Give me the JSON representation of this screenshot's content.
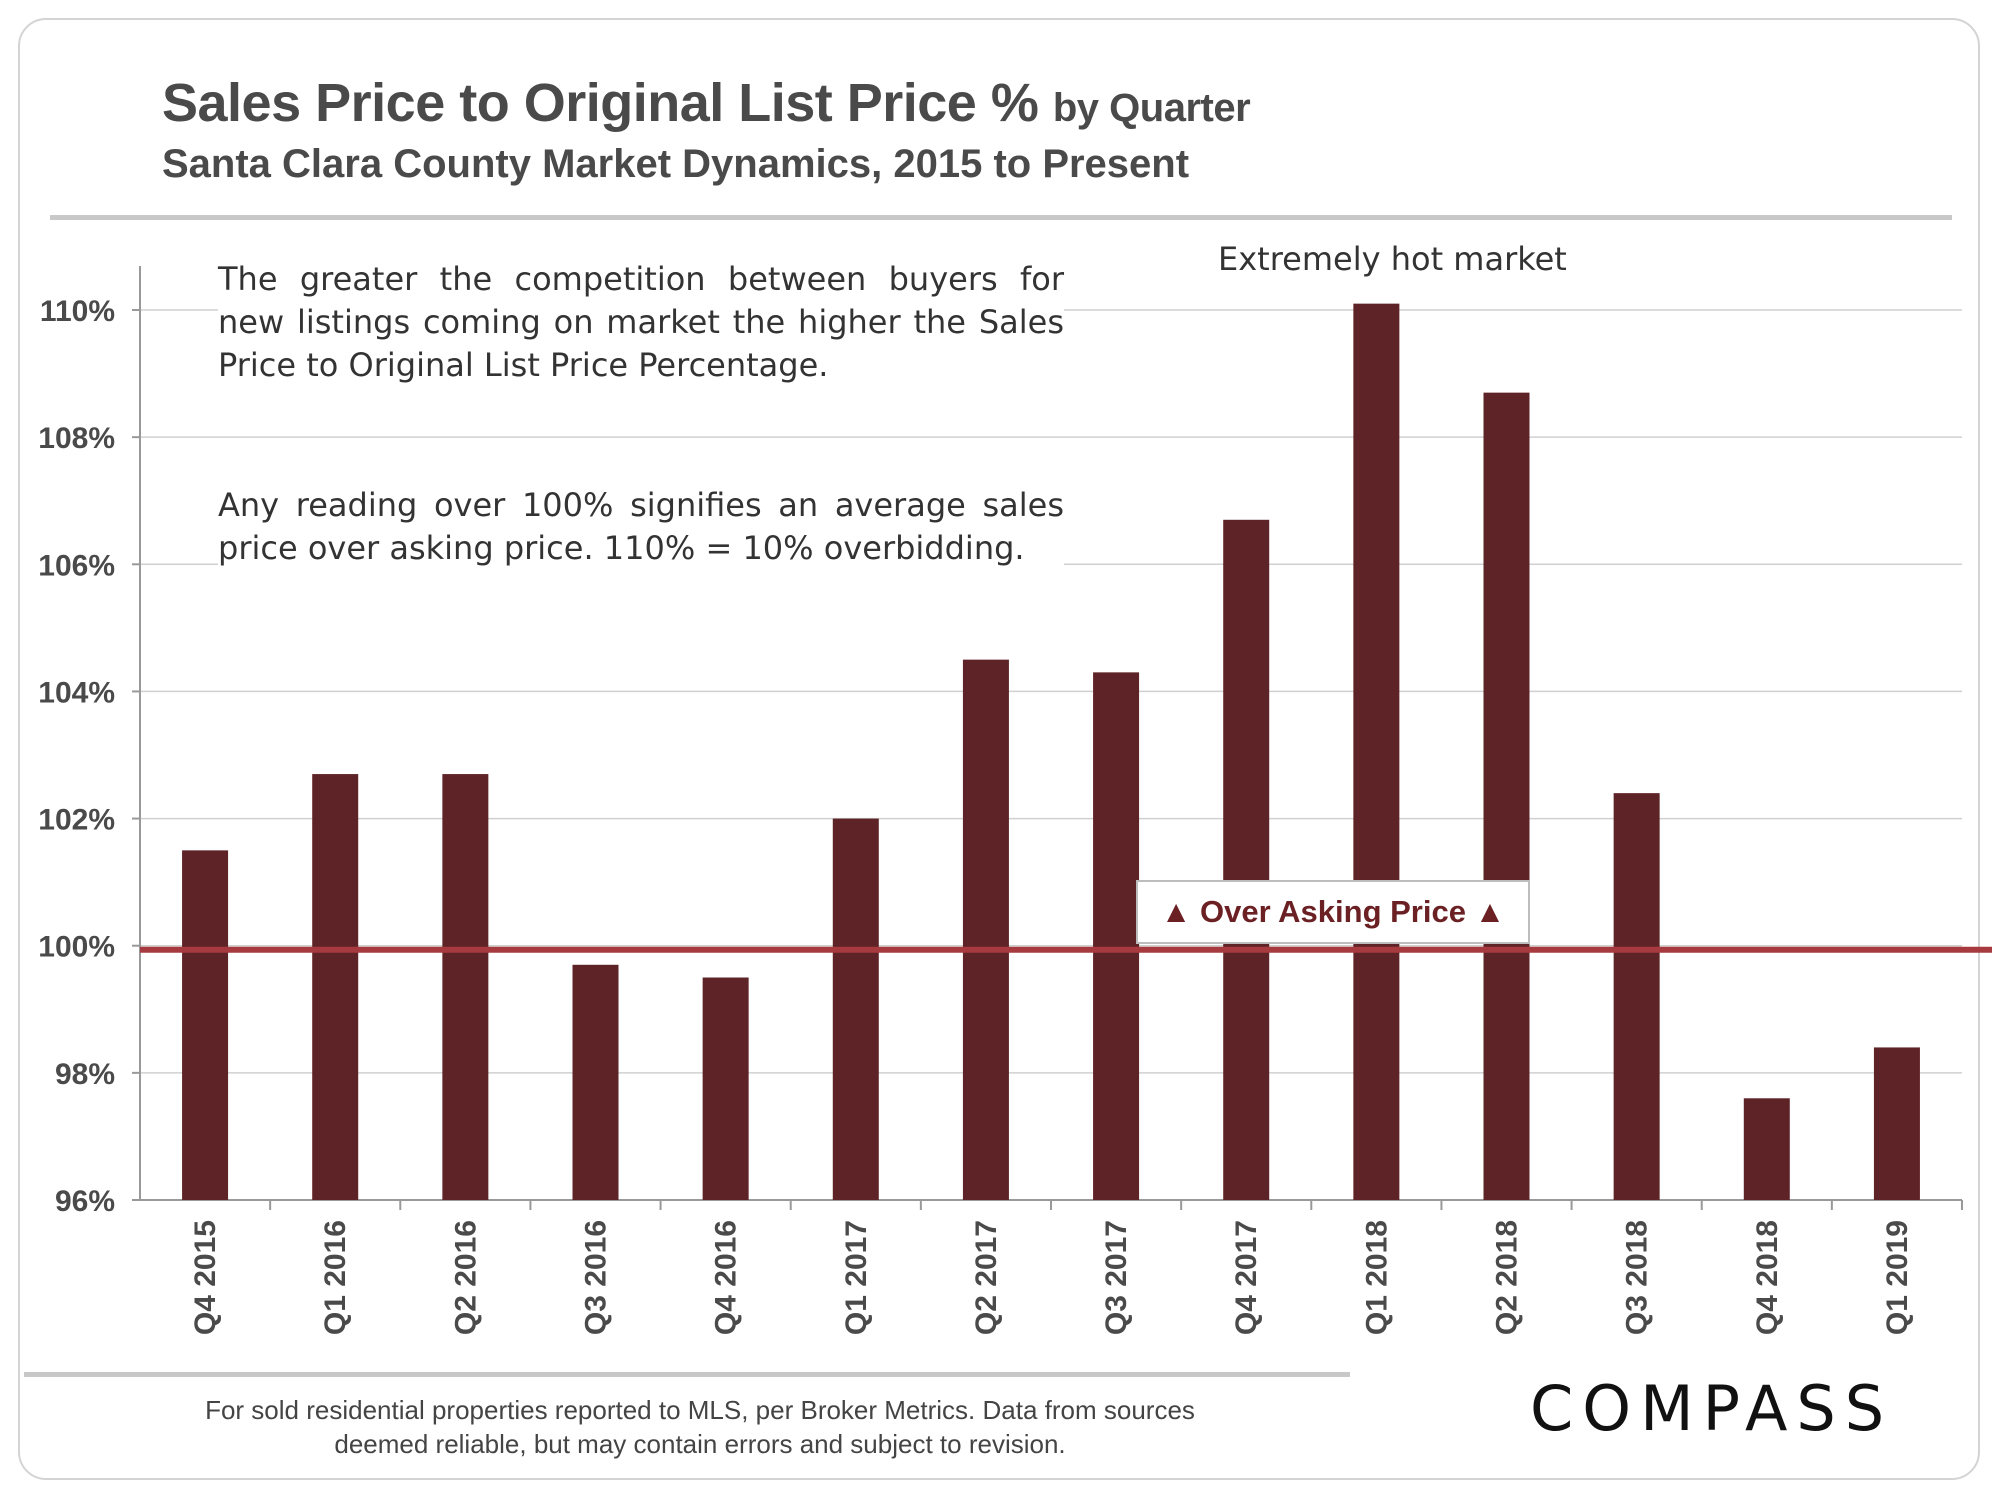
{
  "header": {
    "title": "Sales Price to Original List Price %",
    "title_suffix": "by Quarter",
    "subtitle": "Santa Clara County Market Dynamics, 2015 to Present"
  },
  "notes": {
    "competition": "The greater the competition between buyers for new listings coming on market the higher the Sales Price to Original List Price Percentage.",
    "threshold": "Any reading over 100% signifies an average sales price over asking price. 110% = 10% overbidding."
  },
  "annotation": "Extremely hot market",
  "callout": "▲ Over Asking Price ▲",
  "footnote": {
    "line1": "For sold residential properties reported to MLS, per Broker Metrics. Data from sources",
    "line2": "deemed reliable, but may contain errors and subject to revision."
  },
  "logo": "COMPASS",
  "colors": {
    "bar": "#5e2326",
    "reference_line": "#a63a3f",
    "grid": "#d0d0d0"
  },
  "chart_data": {
    "type": "bar",
    "title": "Sales Price to Original List Price %",
    "categories": [
      "Q4 2015",
      "Q1 2016",
      "Q2 2016",
      "Q3 2016",
      "Q4 2016",
      "Q1 2017",
      "Q2 2017",
      "Q3 2017",
      "Q4 2017",
      "Q1 2018",
      "Q2 2018",
      "Q3 2018",
      "Q4 2018",
      "Q1 2019"
    ],
    "values": [
      101.5,
      102.7,
      102.7,
      99.7,
      99.5,
      102.0,
      104.5,
      104.3,
      106.7,
      110.1,
      108.7,
      102.4,
      97.6,
      98.4
    ],
    "ylim": [
      96,
      110
    ],
    "yticks": [
      96,
      98,
      100,
      102,
      104,
      106,
      108,
      110
    ],
    "ytick_labels": [
      "96%",
      "98%",
      "100%",
      "102%",
      "104%",
      "106%",
      "108%",
      "110%"
    ],
    "reference_line": 100,
    "grid": true
  }
}
